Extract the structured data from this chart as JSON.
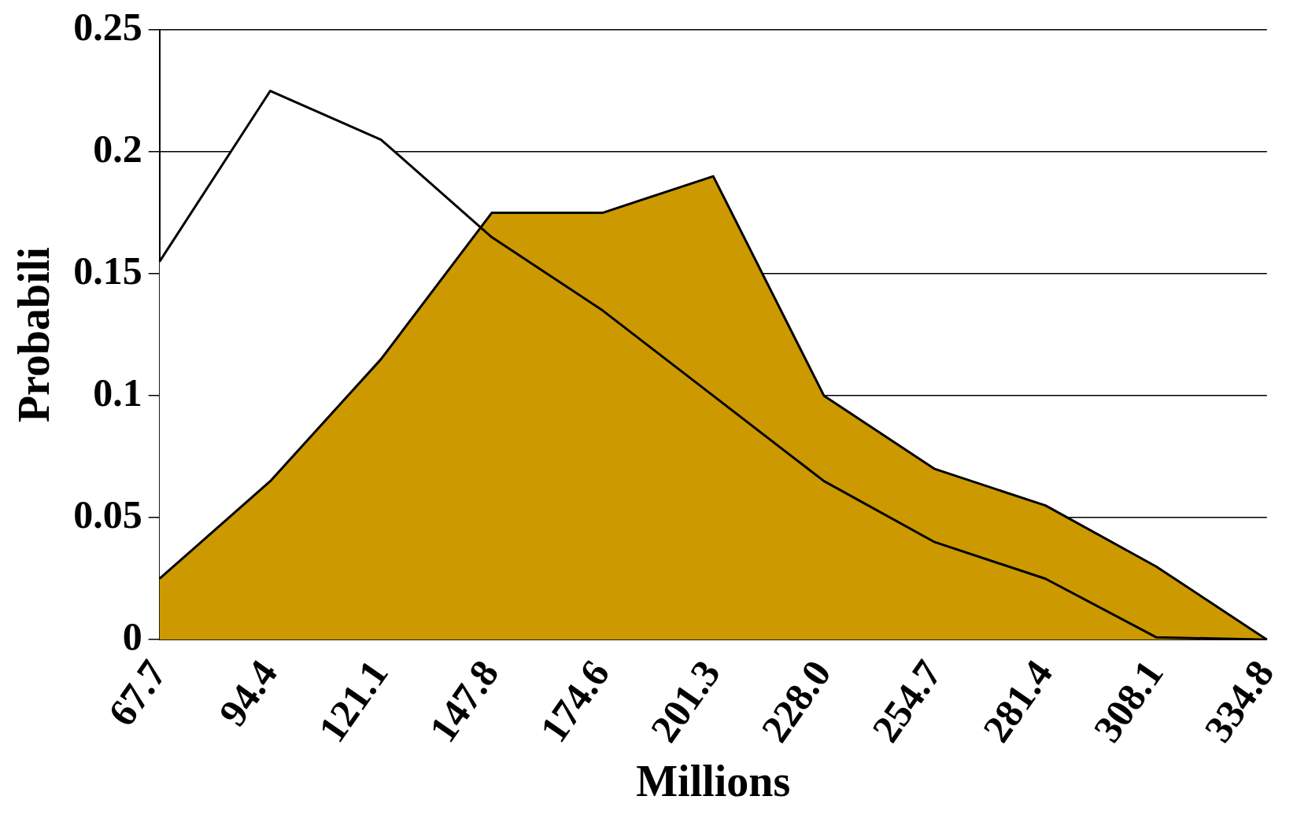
{
  "chart_data": {
    "type": "area",
    "xlabel": "Millions",
    "ylabel": "Probabili",
    "categories": [
      "67.7",
      "94.4",
      "121.1",
      "147.8",
      "174.6",
      "201.3",
      "228.0",
      "254.7",
      "281.4",
      "308.1",
      "334.8"
    ],
    "series": [
      {
        "color": "#ffffff",
        "values": [
          0.155,
          0.225,
          0.205,
          0.165,
          0.135,
          0.1,
          0.065,
          0.04,
          0.025,
          0.001,
          0
        ]
      },
      {
        "color": "#cc9900",
        "values": [
          0.025,
          0.065,
          0.115,
          0.175,
          0.175,
          0.19,
          0.1,
          0.07,
          0.055,
          0.03,
          0
        ]
      }
    ],
    "ylim": [
      0,
      0.25
    ],
    "yticks": [
      0,
      0.05,
      0.1,
      0.15,
      0.2,
      0.25
    ],
    "grid": "y",
    "legend": false,
    "marker": "none",
    "line_style": "solid"
  }
}
